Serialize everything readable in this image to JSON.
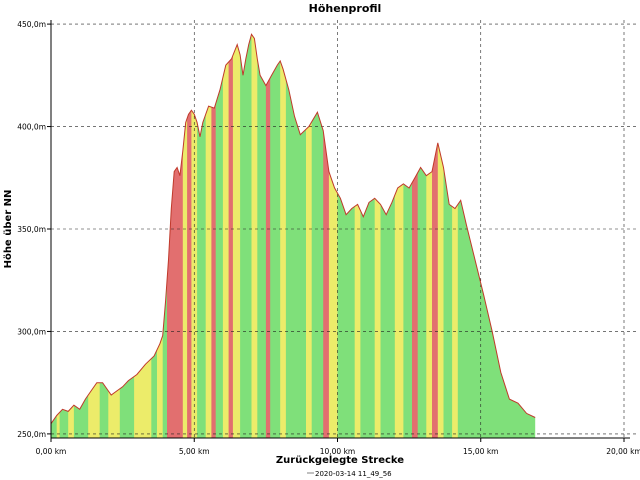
{
  "chart_data": {
    "type": "area",
    "title": "Höhenprofil",
    "xlabel": "Zurückgelegte Strecke",
    "ylabel": "Höhe über NN",
    "xlim": [
      0,
      20
    ],
    "ylim": [
      248,
      452
    ],
    "grid": true,
    "legend_position": "bottom",
    "x_ticks": [
      0,
      5,
      10,
      15,
      20
    ],
    "x_tick_labels": [
      "0,00 km",
      "5,00 km",
      "10,00 km",
      "15,00 km",
      "20,00 km"
    ],
    "y_ticks": [
      250,
      300,
      350,
      400,
      450
    ],
    "y_tick_labels": [
      "250,0m",
      "300,0m",
      "350,0m",
      "400,0m",
      "450,0m"
    ],
    "colors": {
      "line": "#c0392b",
      "green": "#7fe07a",
      "yellow": "#ecec6a",
      "red": "#e26f6f"
    },
    "series": [
      {
        "name": "2020-03-14 11_49_56",
        "x": [
          0.0,
          0.2,
          0.4,
          0.6,
          0.8,
          1.0,
          1.2,
          1.4,
          1.6,
          1.7,
          1.8,
          2.0,
          2.1,
          2.3,
          2.5,
          2.7,
          3.0,
          3.3,
          3.6,
          3.8,
          3.9,
          4.0,
          4.1,
          4.2,
          4.3,
          4.4,
          4.5,
          4.6,
          4.7,
          4.8,
          4.9,
          5.0,
          5.1,
          5.2,
          5.3,
          5.5,
          5.7,
          5.9,
          6.1,
          6.3,
          6.5,
          6.6,
          6.7,
          6.8,
          6.9,
          7.0,
          7.1,
          7.2,
          7.3,
          7.5,
          7.7,
          7.9,
          8.0,
          8.1,
          8.3,
          8.5,
          8.7,
          9.0,
          9.3,
          9.5,
          9.7,
          9.9,
          10.1,
          10.3,
          10.5,
          10.7,
          10.9,
          11.1,
          11.3,
          11.5,
          11.7,
          11.9,
          12.1,
          12.3,
          12.5,
          12.7,
          12.9,
          13.1,
          13.3,
          13.5,
          13.7,
          13.9,
          14.1,
          14.3,
          14.5,
          14.8,
          15.1,
          15.4,
          15.7,
          16.0,
          16.3,
          16.6,
          16.9
        ],
        "y": [
          255,
          259,
          262,
          261,
          264,
          262,
          267,
          271,
          275,
          275,
          275,
          271,
          269,
          271,
          273,
          276,
          279,
          284,
          288,
          294,
          298,
          315,
          335,
          360,
          378,
          380,
          376,
          388,
          402,
          406,
          408,
          406,
          402,
          395,
          402,
          410,
          409,
          418,
          430,
          433,
          440,
          435,
          425,
          433,
          440,
          445,
          443,
          433,
          425,
          420,
          425,
          430,
          432,
          428,
          418,
          405,
          396,
          400,
          407,
          398,
          378,
          370,
          365,
          357,
          360,
          362,
          356,
          363,
          365,
          362,
          357,
          363,
          370,
          372,
          370,
          375,
          380,
          376,
          378,
          392,
          380,
          362,
          360,
          364,
          352,
          335,
          318,
          300,
          280,
          267,
          265,
          260,
          258
        ]
      }
    ]
  },
  "bands": [
    {
      "x0": 0.0,
      "x1": 0.2,
      "c": "g"
    },
    {
      "x0": 0.2,
      "x1": 0.3,
      "c": "y"
    },
    {
      "x0": 0.3,
      "x1": 0.6,
      "c": "g"
    },
    {
      "x0": 0.6,
      "x1": 0.8,
      "c": "y"
    },
    {
      "x0": 0.8,
      "x1": 1.3,
      "c": "g"
    },
    {
      "x0": 1.3,
      "x1": 1.7,
      "c": "y"
    },
    {
      "x0": 1.7,
      "x1": 2.0,
      "c": "g"
    },
    {
      "x0": 2.0,
      "x1": 2.4,
      "c": "y"
    },
    {
      "x0": 2.4,
      "x1": 2.9,
      "c": "g"
    },
    {
      "x0": 2.9,
      "x1": 3.5,
      "c": "y"
    },
    {
      "x0": 3.5,
      "x1": 3.7,
      "c": "g"
    },
    {
      "x0": 3.7,
      "x1": 3.9,
      "c": "y"
    },
    {
      "x0": 3.9,
      "x1": 4.05,
      "c": "g"
    },
    {
      "x0": 4.05,
      "x1": 4.6,
      "c": "r"
    },
    {
      "x0": 4.6,
      "x1": 4.75,
      "c": "y"
    },
    {
      "x0": 4.75,
      "x1": 4.9,
      "c": "r"
    },
    {
      "x0": 4.9,
      "x1": 5.1,
      "c": "y"
    },
    {
      "x0": 5.1,
      "x1": 5.4,
      "c": "g"
    },
    {
      "x0": 5.4,
      "x1": 5.6,
      "c": "y"
    },
    {
      "x0": 5.6,
      "x1": 5.75,
      "c": "r"
    },
    {
      "x0": 5.75,
      "x1": 6.0,
      "c": "g"
    },
    {
      "x0": 6.0,
      "x1": 6.2,
      "c": "y"
    },
    {
      "x0": 6.2,
      "x1": 6.35,
      "c": "r"
    },
    {
      "x0": 6.35,
      "x1": 6.6,
      "c": "y"
    },
    {
      "x0": 6.6,
      "x1": 7.0,
      "c": "g"
    },
    {
      "x0": 7.0,
      "x1": 7.2,
      "c": "y"
    },
    {
      "x0": 7.2,
      "x1": 7.5,
      "c": "g"
    },
    {
      "x0": 7.5,
      "x1": 7.65,
      "c": "r"
    },
    {
      "x0": 7.65,
      "x1": 8.0,
      "c": "g"
    },
    {
      "x0": 8.0,
      "x1": 8.2,
      "c": "y"
    },
    {
      "x0": 8.2,
      "x1": 8.9,
      "c": "g"
    },
    {
      "x0": 8.9,
      "x1": 9.1,
      "c": "y"
    },
    {
      "x0": 9.1,
      "x1": 9.5,
      "c": "g"
    },
    {
      "x0": 9.5,
      "x1": 9.7,
      "c": "r"
    },
    {
      "x0": 9.7,
      "x1": 10.0,
      "c": "y"
    },
    {
      "x0": 10.0,
      "x1": 10.6,
      "c": "g"
    },
    {
      "x0": 10.6,
      "x1": 10.8,
      "c": "y"
    },
    {
      "x0": 10.8,
      "x1": 11.3,
      "c": "g"
    },
    {
      "x0": 11.3,
      "x1": 11.5,
      "c": "y"
    },
    {
      "x0": 11.5,
      "x1": 12.0,
      "c": "g"
    },
    {
      "x0": 12.0,
      "x1": 12.3,
      "c": "y"
    },
    {
      "x0": 12.3,
      "x1": 12.6,
      "c": "g"
    },
    {
      "x0": 12.6,
      "x1": 12.8,
      "c": "r"
    },
    {
      "x0": 12.8,
      "x1": 13.1,
      "c": "g"
    },
    {
      "x0": 13.1,
      "x1": 13.3,
      "c": "y"
    },
    {
      "x0": 13.3,
      "x1": 13.5,
      "c": "r"
    },
    {
      "x0": 13.5,
      "x1": 13.7,
      "c": "y"
    },
    {
      "x0": 13.7,
      "x1": 14.0,
      "c": "g"
    },
    {
      "x0": 14.0,
      "x1": 14.2,
      "c": "y"
    },
    {
      "x0": 14.2,
      "x1": 17.0,
      "c": "g"
    }
  ]
}
